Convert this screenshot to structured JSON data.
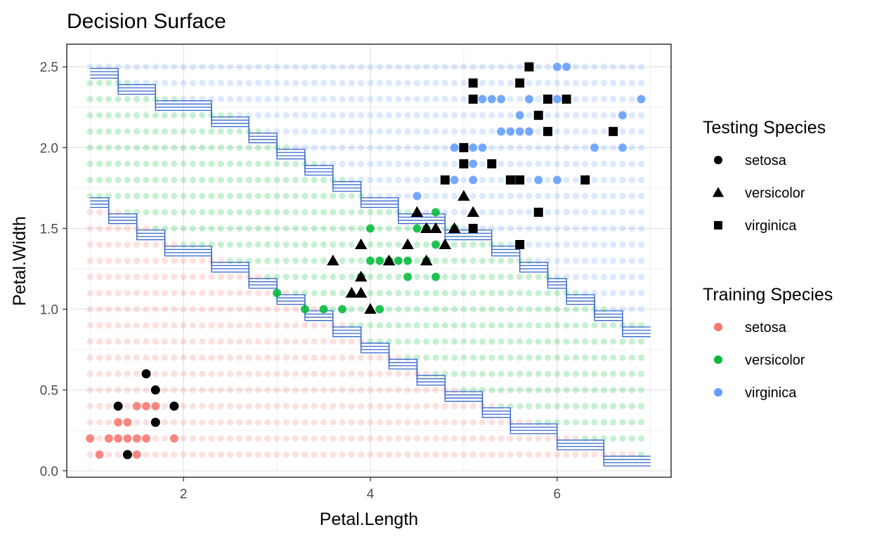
{
  "chart_data": {
    "type": "scatter",
    "title": "Decision Surface",
    "xlabel": "Petal.Length",
    "ylabel": "Petal.Width",
    "xlim": [
      0.75,
      7.22
    ],
    "ylim": [
      -0.04,
      2.64
    ],
    "x_ticks": [
      {
        "v": 2,
        "label": "2"
      },
      {
        "v": 4,
        "label": "4"
      },
      {
        "v": 6,
        "label": "6"
      }
    ],
    "y_ticks": [
      {
        "v": 0.0,
        "label": "0.0"
      },
      {
        "v": 0.5,
        "label": "0.5"
      },
      {
        "v": 1.0,
        "label": "1.0"
      },
      {
        "v": 1.5,
        "label": "1.5"
      },
      {
        "v": 2.0,
        "label": "2.0"
      },
      {
        "v": 2.5,
        "label": "2.5"
      }
    ],
    "grid": true,
    "legend_position": "right",
    "colors": {
      "setosa": "#F8766D",
      "versicolor": "#00BA38",
      "virginica": "#619CFF",
      "boundary": "#3366CC"
    },
    "grid_surface": {
      "x_start": 1.0,
      "x_step": 0.1,
      "x_count": 60,
      "y_start": 0.1,
      "y_step": 0.1,
      "y_count": 25,
      "upper_boundary": [
        [
          1.0,
          2.5
        ],
        [
          1.5,
          2.4
        ],
        [
          2.0,
          2.3
        ],
        [
          2.5,
          2.2
        ],
        [
          3.0,
          2.05
        ],
        [
          3.5,
          1.9
        ],
        [
          4.0,
          1.7
        ],
        [
          4.5,
          1.6
        ],
        [
          5.0,
          1.5
        ],
        [
          5.5,
          1.4
        ],
        [
          6.0,
          1.2
        ],
        [
          6.5,
          1.0
        ],
        [
          6.9,
          0.9
        ]
      ],
      "lower_boundary": [
        [
          1.0,
          1.7
        ],
        [
          1.5,
          1.55
        ],
        [
          2.0,
          1.4
        ],
        [
          2.5,
          1.3
        ],
        [
          3.0,
          1.15
        ],
        [
          3.5,
          1.0
        ],
        [
          4.0,
          0.8
        ],
        [
          4.5,
          0.65
        ],
        [
          5.0,
          0.5
        ],
        [
          5.5,
          0.35
        ],
        [
          6.0,
          0.25
        ],
        [
          6.5,
          0.15
        ],
        [
          6.9,
          0.1
        ]
      ]
    },
    "training_series": [
      {
        "name": "setosa",
        "points": [
          [
            1.0,
            0.2
          ],
          [
            1.1,
            0.1
          ],
          [
            1.2,
            0.2
          ],
          [
            1.3,
            0.2
          ],
          [
            1.3,
            0.3
          ],
          [
            1.4,
            0.2
          ],
          [
            1.4,
            0.3
          ],
          [
            1.5,
            0.1
          ],
          [
            1.5,
            0.2
          ],
          [
            1.5,
            0.4
          ],
          [
            1.6,
            0.2
          ],
          [
            1.6,
            0.4
          ],
          [
            1.7,
            0.4
          ],
          [
            1.9,
            0.2
          ]
        ]
      },
      {
        "name": "versicolor",
        "points": [
          [
            3.0,
            1.1
          ],
          [
            3.3,
            1.0
          ],
          [
            3.5,
            1.0
          ],
          [
            3.7,
            1.0
          ],
          [
            4.0,
            1.3
          ],
          [
            4.0,
            1.5
          ],
          [
            4.1,
            1.0
          ],
          [
            4.1,
            1.3
          ],
          [
            4.2,
            1.3
          ],
          [
            4.3,
            1.3
          ],
          [
            4.4,
            1.2
          ],
          [
            4.4,
            1.3
          ],
          [
            4.5,
            1.5
          ],
          [
            4.6,
            1.3
          ],
          [
            4.6,
            1.5
          ],
          [
            4.7,
            1.2
          ],
          [
            4.7,
            1.4
          ],
          [
            4.7,
            1.6
          ],
          [
            4.9,
            1.5
          ],
          [
            3.9,
            1.2
          ]
        ]
      },
      {
        "name": "virginica",
        "points": [
          [
            4.5,
            1.7
          ],
          [
            4.8,
            1.8
          ],
          [
            4.9,
            1.8
          ],
          [
            4.9,
            2.0
          ],
          [
            5.0,
            1.9
          ],
          [
            5.1,
            1.8
          ],
          [
            5.1,
            1.9
          ],
          [
            5.1,
            2.0
          ],
          [
            5.1,
            2.3
          ],
          [
            5.2,
            2.0
          ],
          [
            5.2,
            2.3
          ],
          [
            5.3,
            2.3
          ],
          [
            5.4,
            2.1
          ],
          [
            5.4,
            2.3
          ],
          [
            5.5,
            1.8
          ],
          [
            5.5,
            2.1
          ],
          [
            5.6,
            1.8
          ],
          [
            5.6,
            2.1
          ],
          [
            5.6,
            2.2
          ],
          [
            5.6,
            2.4
          ],
          [
            5.7,
            2.1
          ],
          [
            5.7,
            2.3
          ],
          [
            5.8,
            1.8
          ],
          [
            5.8,
            2.2
          ],
          [
            6.0,
            1.8
          ],
          [
            6.0,
            2.3
          ],
          [
            6.1,
            2.3
          ],
          [
            6.3,
            1.8
          ],
          [
            6.4,
            2.0
          ],
          [
            6.6,
            2.1
          ],
          [
            6.7,
            2.0
          ],
          [
            6.7,
            2.2
          ],
          [
            6.9,
            2.3
          ],
          [
            6.0,
            2.5
          ],
          [
            6.1,
            2.5
          ]
        ]
      }
    ],
    "testing_series": [
      {
        "name": "setosa",
        "points": [
          [
            1.3,
            0.4
          ],
          [
            1.4,
            0.1
          ],
          [
            1.6,
            0.6
          ],
          [
            1.7,
            0.3
          ],
          [
            1.7,
            0.5
          ],
          [
            1.9,
            0.4
          ]
        ]
      },
      {
        "name": "versicolor",
        "points": [
          [
            3.6,
            1.3
          ],
          [
            3.8,
            1.1
          ],
          [
            3.9,
            1.1
          ],
          [
            3.9,
            1.2
          ],
          [
            3.9,
            1.4
          ],
          [
            4.0,
            1.0
          ],
          [
            4.2,
            1.3
          ],
          [
            4.4,
            1.4
          ],
          [
            4.5,
            1.6
          ],
          [
            4.6,
            1.5
          ],
          [
            4.7,
            1.5
          ],
          [
            4.8,
            1.4
          ],
          [
            4.9,
            1.5
          ],
          [
            5.0,
            1.7
          ],
          [
            5.1,
            1.6
          ],
          [
            4.6,
            1.3
          ]
        ]
      },
      {
        "name": "virginica",
        "points": [
          [
            4.8,
            1.8
          ],
          [
            5.0,
            1.9
          ],
          [
            5.0,
            2.0
          ],
          [
            5.1,
            1.5
          ],
          [
            5.1,
            2.3
          ],
          [
            5.1,
            2.4
          ],
          [
            5.3,
            1.9
          ],
          [
            5.5,
            1.8
          ],
          [
            5.6,
            1.4
          ],
          [
            5.6,
            1.8
          ],
          [
            5.6,
            2.4
          ],
          [
            5.7,
            2.5
          ],
          [
            5.8,
            1.6
          ],
          [
            5.8,
            2.2
          ],
          [
            5.9,
            2.1
          ],
          [
            5.9,
            2.3
          ],
          [
            6.1,
            2.3
          ],
          [
            6.3,
            1.8
          ],
          [
            6.6,
            2.1
          ]
        ]
      }
    ],
    "legends": [
      {
        "title": "Testing Species",
        "kind": "testing",
        "entries": [
          {
            "label": "setosa",
            "shape": "circle"
          },
          {
            "label": "versicolor",
            "shape": "triangle"
          },
          {
            "label": "virginica",
            "shape": "square"
          }
        ]
      },
      {
        "title": "Training Species",
        "kind": "training",
        "entries": [
          {
            "label": "setosa",
            "color": "#F8766D"
          },
          {
            "label": "versicolor",
            "color": "#00BA38"
          },
          {
            "label": "virginica",
            "color": "#619CFF"
          }
        ]
      }
    ]
  }
}
